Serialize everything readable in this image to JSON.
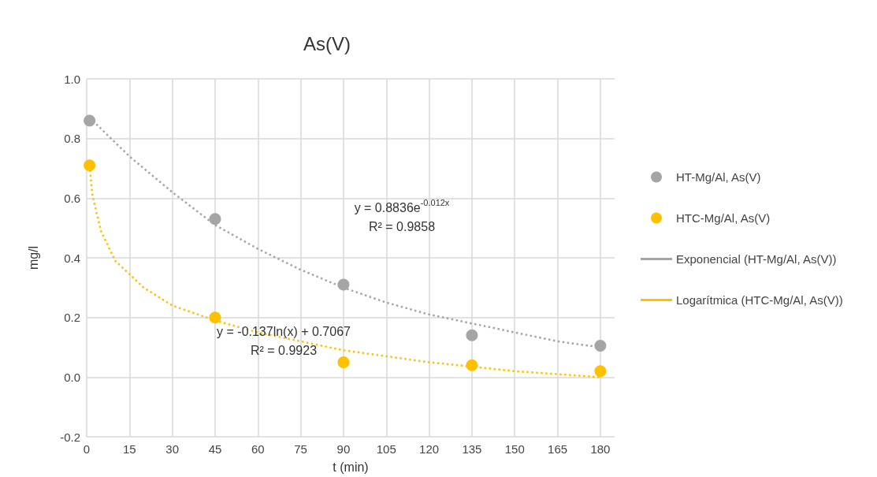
{
  "chart_data": {
    "type": "scatter",
    "title": "As(V)",
    "xlabel": "t (min)",
    "ylabel": "mg/l",
    "xlim": [
      0,
      185
    ],
    "xticks": [
      0,
      15,
      30,
      45,
      60,
      75,
      90,
      105,
      120,
      135,
      150,
      165,
      180
    ],
    "ylim": [
      -0.2,
      1.0
    ],
    "yticks": [
      {
        "value": -0.2,
        "label": "-0.2"
      },
      {
        "value": 0,
        "label": "0.0"
      },
      {
        "value": 0.2,
        "label": "0.2"
      },
      {
        "value": 0.4,
        "label": "0.4"
      },
      {
        "value": 0.6,
        "label": "0.6"
      },
      {
        "value": 0.8,
        "label": "0.8"
      },
      {
        "value": 1.0,
        "label": "1.0"
      }
    ],
    "grid": true,
    "legend": "right",
    "marker": "circle",
    "series": [
      {
        "name": "HT-Mg/Al, As(V)",
        "color": "#a5a5a5",
        "x": [
          1,
          45,
          90,
          135,
          180
        ],
        "values": [
          0.86,
          0.53,
          0.31,
          0.14,
          0.105
        ]
      },
      {
        "name": "HTC-Mg/Al, As(V)",
        "color": "#ffc000",
        "x": [
          1,
          45,
          90,
          135,
          180
        ],
        "values": [
          0.71,
          0.2,
          0.05,
          0.04,
          0.02
        ]
      },
      {
        "name": "Exponencial (HT-Mg/Al, As(V))",
        "type": "line",
        "marker": "none",
        "line_style": "dotted",
        "color": "#a5a5a5",
        "x": [
          1,
          15,
          30,
          45,
          60,
          75,
          90,
          105,
          120,
          135,
          150,
          165,
          180
        ],
        "values": [
          0.87,
          0.74,
          0.62,
          0.51,
          0.43,
          0.36,
          0.3,
          0.25,
          0.21,
          0.18,
          0.15,
          0.12,
          0.1
        ]
      },
      {
        "name": "Logarítmica (HTC-Mg/Al, As(V))",
        "type": "line",
        "marker": "none",
        "line_style": "dotted",
        "color": "#ffc000",
        "x": [
          1,
          2,
          5,
          10,
          20,
          30,
          45,
          60,
          90,
          120,
          150,
          165,
          180
        ],
        "values": [
          0.71,
          0.61,
          0.49,
          0.39,
          0.3,
          0.24,
          0.19,
          0.15,
          0.09,
          0.05,
          0.02,
          0.01,
          0
        ]
      }
    ],
    "annotations": [
      "y = 0.8836e$^{-0.012x}$\nR² = 0.9858",
      "y = -0.137ln(x) + 0.7067\nR² = 0.9923"
    ]
  }
}
